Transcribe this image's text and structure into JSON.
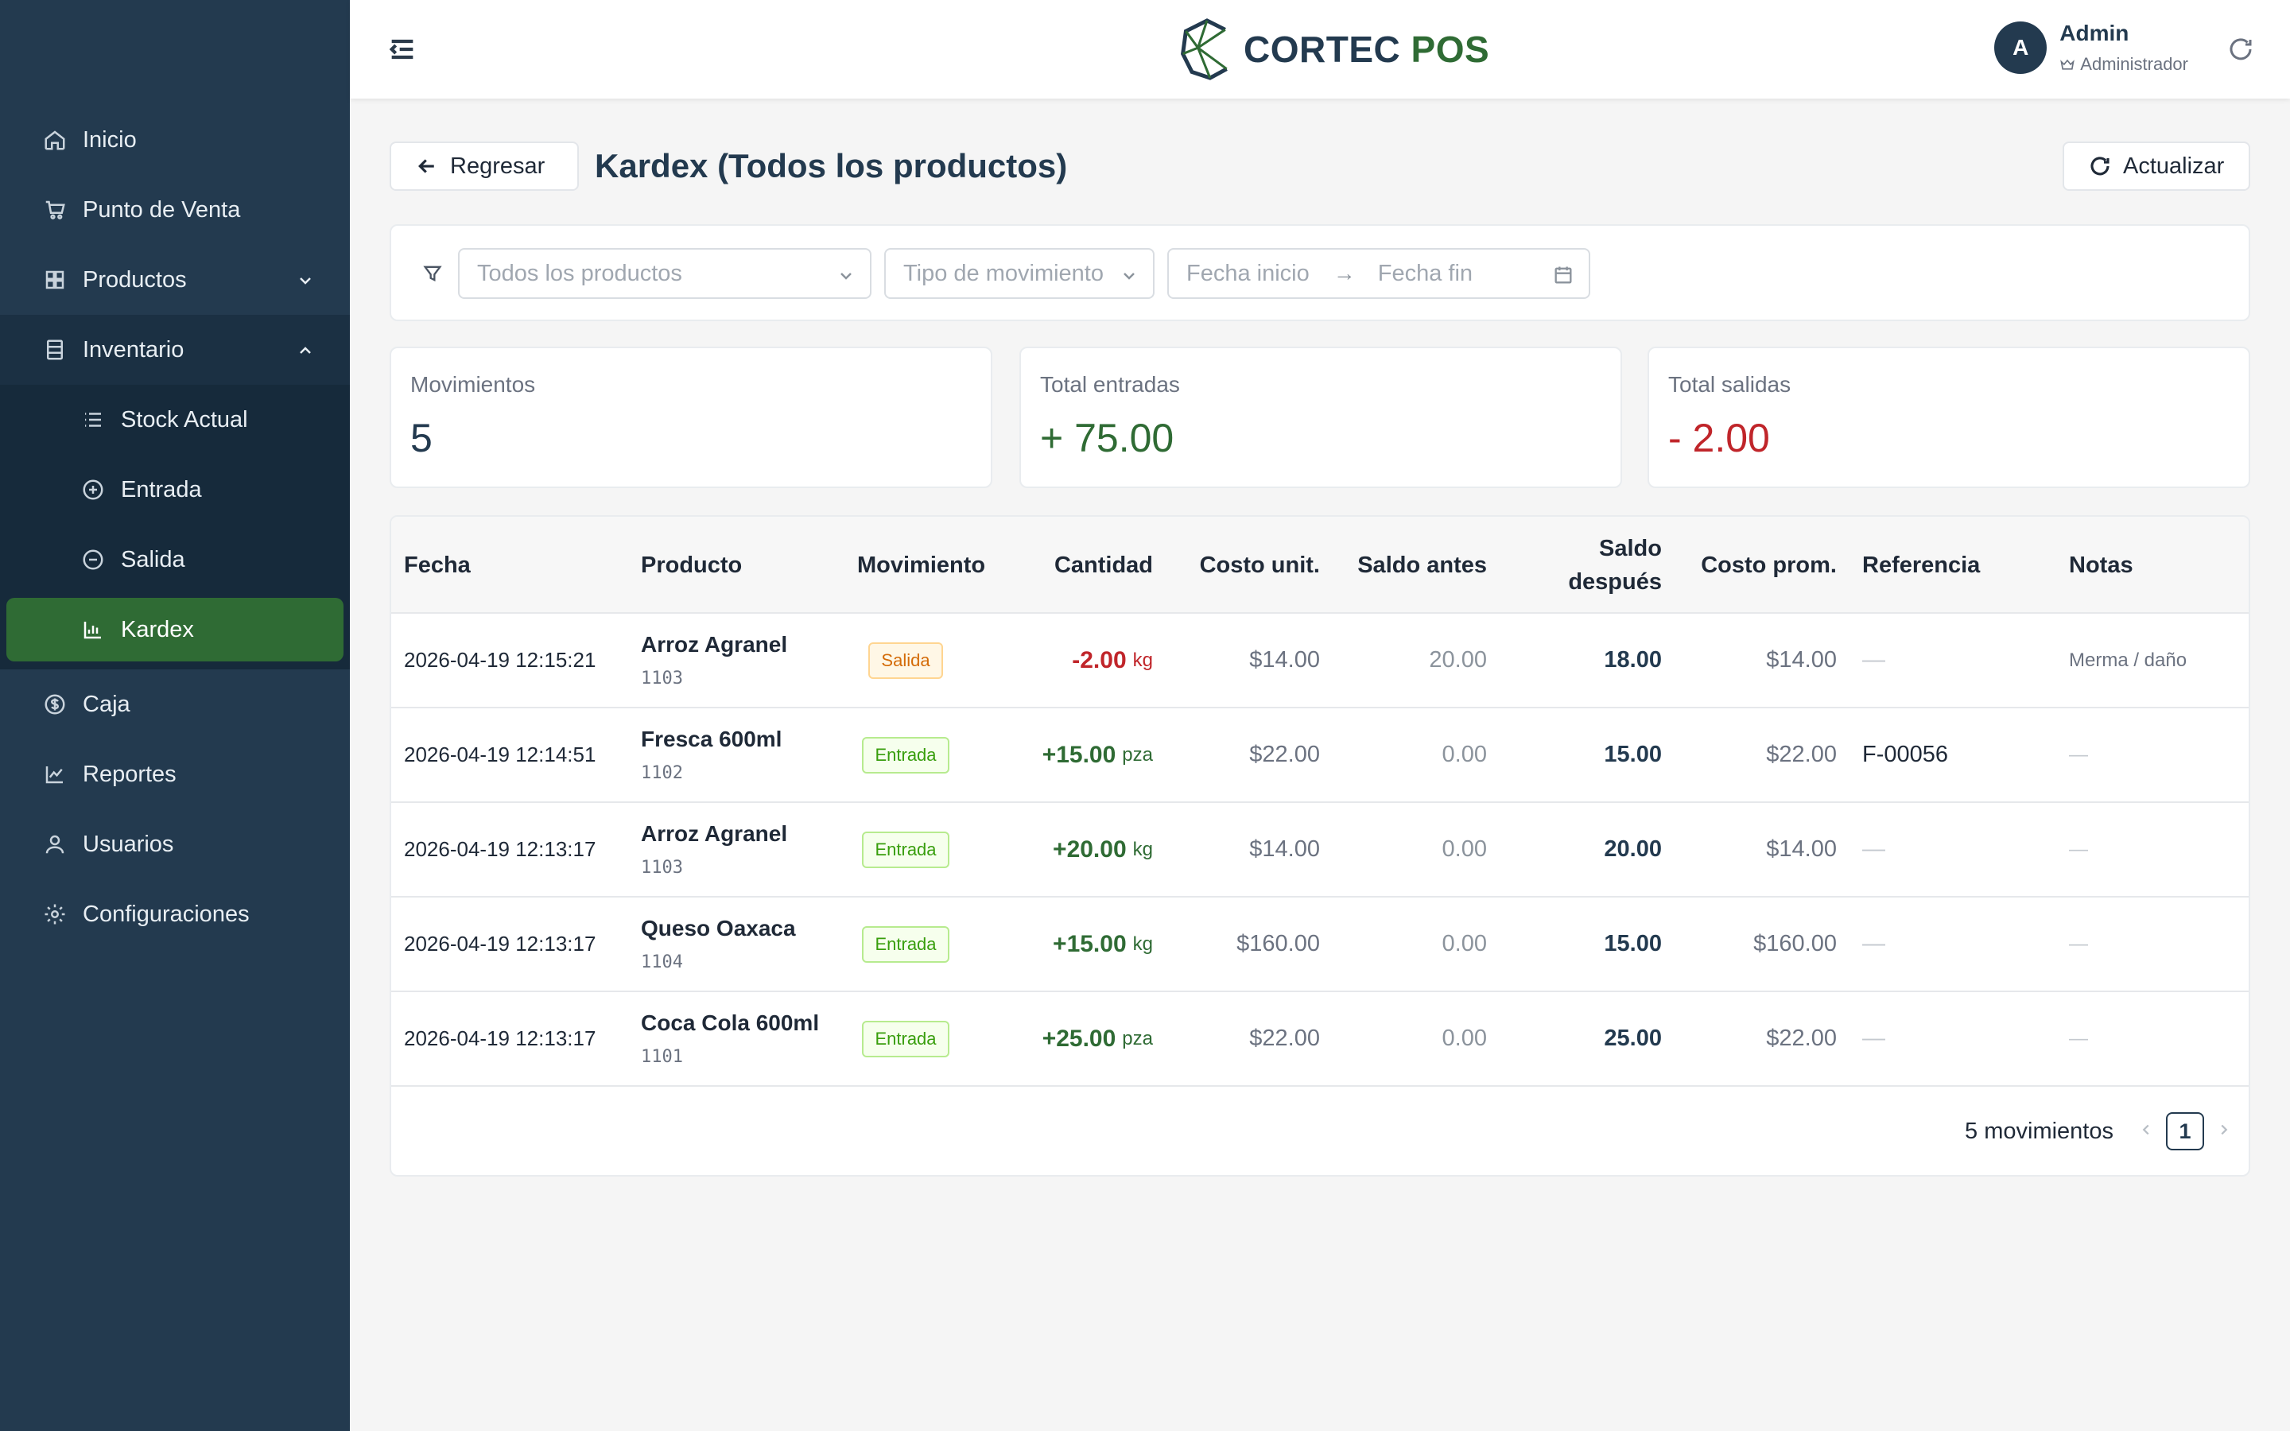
{
  "app": {
    "logo_text_main": "CORTEC",
    "logo_text_accent": "POS"
  },
  "colors": {
    "sidebar": "#233a4f",
    "active": "#2f6b34",
    "positive": "#2f6b34",
    "negative": "#c0252a"
  },
  "sidebar": {
    "items": [
      {
        "label": "Inicio",
        "icon": "home-icon"
      },
      {
        "label": "Punto de Venta",
        "icon": "cart-icon"
      },
      {
        "label": "Productos",
        "icon": "grid-icon"
      },
      {
        "label": "Inventario",
        "icon": "inventory-icon"
      },
      {
        "label": "Caja",
        "icon": "dollar-icon"
      },
      {
        "label": "Reportes",
        "icon": "chart-line-icon"
      },
      {
        "label": "Usuarios",
        "icon": "user-icon"
      },
      {
        "label": "Configuraciones",
        "icon": "gear-icon"
      }
    ],
    "inventario_sub": [
      {
        "label": "Stock Actual",
        "icon": "list-icon"
      },
      {
        "label": "Entrada",
        "icon": "plus-circle-icon"
      },
      {
        "label": "Salida",
        "icon": "minus-circle-icon"
      },
      {
        "label": "Kardex",
        "icon": "bar-chart-icon"
      }
    ]
  },
  "header": {
    "user_initial": "A",
    "user_name": "Admin",
    "user_role": "Administrador"
  },
  "page": {
    "back_label": "Regresar",
    "title": "Kardex (Todos los productos)",
    "refresh_label": "Actualizar"
  },
  "filters": {
    "product_placeholder": "Todos los productos",
    "type_placeholder": "Tipo de movimiento",
    "date_start_placeholder": "Fecha inicio",
    "date_end_placeholder": "Fecha fin"
  },
  "stats": [
    {
      "label": "Movimientos",
      "value": "5"
    },
    {
      "label": "Total entradas",
      "value": "+ 75.00"
    },
    {
      "label": "Total salidas",
      "value": "- 2.00"
    }
  ],
  "table": {
    "headers": {
      "fecha": "Fecha",
      "producto": "Producto",
      "movimiento": "Movimiento",
      "cantidad": "Cantidad",
      "costo": "Costo unit.",
      "antes": "Saldo antes",
      "despues": "Saldo después",
      "prom": "Costo prom.",
      "ref": "Referencia",
      "notas": "Notas"
    },
    "rows": [
      {
        "fecha": "2026-04-19 12:15:21",
        "producto": "Arroz Agranel",
        "codigo": "1103",
        "movimiento": "Salida",
        "cantidad": "-2.00",
        "unidad": "kg",
        "costo": "$14.00",
        "antes": "20.00",
        "despues": "18.00",
        "prom": "$14.00",
        "ref": "—",
        "notas": "Merma / daño"
      },
      {
        "fecha": "2026-04-19 12:14:51",
        "producto": "Fresca 600ml",
        "codigo": "1102",
        "movimiento": "Entrada",
        "cantidad": "+15.00",
        "unidad": "pza",
        "costo": "$22.00",
        "antes": "0.00",
        "despues": "15.00",
        "prom": "$22.00",
        "ref": "F-00056",
        "notas": "—"
      },
      {
        "fecha": "2026-04-19 12:13:17",
        "producto": "Arroz Agranel",
        "codigo": "1103",
        "movimiento": "Entrada",
        "cantidad": "+20.00",
        "unidad": "kg",
        "costo": "$14.00",
        "antes": "0.00",
        "despues": "20.00",
        "prom": "$14.00",
        "ref": "—",
        "notas": "—"
      },
      {
        "fecha": "2026-04-19 12:13:17",
        "producto": "Queso Oaxaca",
        "codigo": "1104",
        "movimiento": "Entrada",
        "cantidad": "+15.00",
        "unidad": "kg",
        "costo": "$160.00",
        "antes": "0.00",
        "despues": "15.00",
        "prom": "$160.00",
        "ref": "—",
        "notas": "—"
      },
      {
        "fecha": "2026-04-19 12:13:17",
        "producto": "Coca Cola 600ml",
        "codigo": "1101",
        "movimiento": "Entrada",
        "cantidad": "+25.00",
        "unidad": "pza",
        "costo": "$22.00",
        "antes": "0.00",
        "despues": "25.00",
        "prom": "$22.00",
        "ref": "—",
        "notas": "—"
      }
    ]
  },
  "pagination": {
    "total_label": "5 movimientos",
    "current_page": "1"
  }
}
